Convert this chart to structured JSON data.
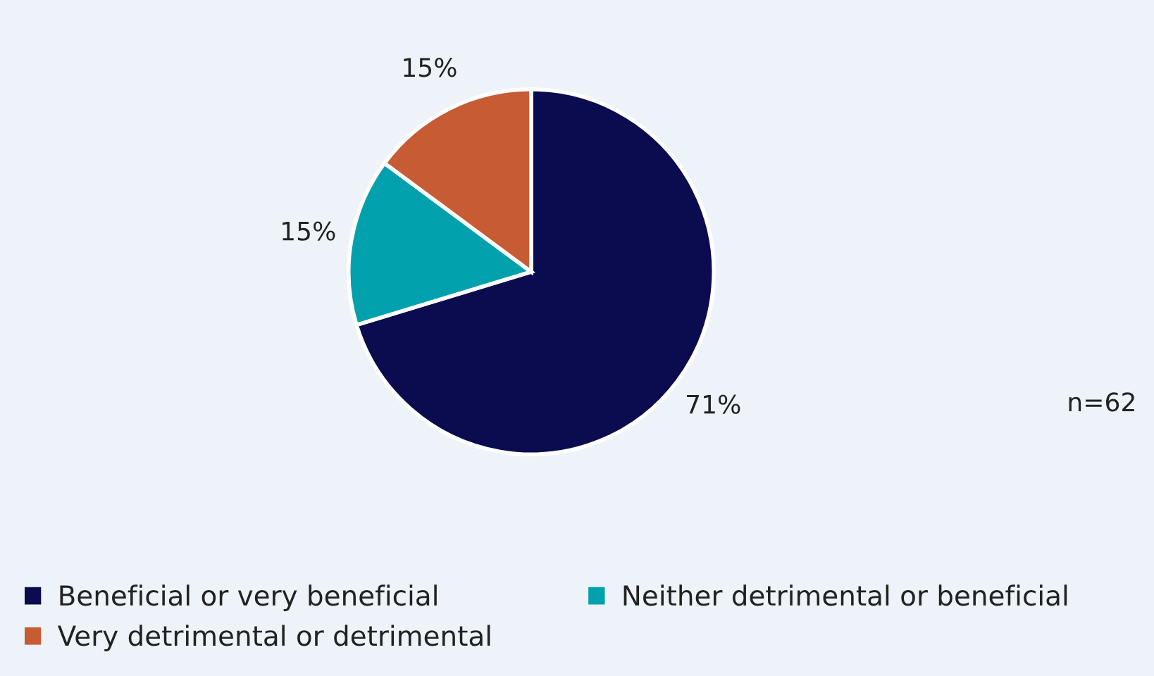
{
  "chart_data": {
    "type": "pie",
    "categories": [
      "Beneficial or very beneficial",
      "Neither detrimental or beneficial",
      "Very detrimental or detrimental"
    ],
    "values": [
      71,
      15,
      15
    ],
    "colors": [
      "#0b0b4f",
      "#00a1ad",
      "#c75b33"
    ],
    "value_labels": [
      "71%",
      "15%",
      "15%"
    ],
    "legend": "bottom",
    "annotations": [
      "n=62"
    ]
  }
}
